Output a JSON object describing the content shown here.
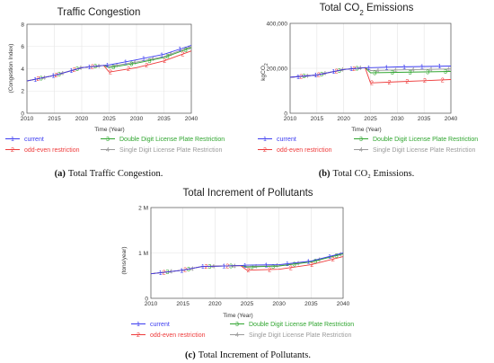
{
  "colors": {
    "current": "#3b3bf0",
    "odd_even": "#ee3b3b",
    "double": "#2fa52f",
    "single": "#9a9a9a"
  },
  "legend": [
    {
      "name": "current",
      "marker": "1",
      "color": "#3b3bf0"
    },
    {
      "name": "odd-even restriction",
      "marker": "2",
      "color": "#ee3b3b"
    },
    {
      "name": "Double Digit License Plate Restriction",
      "marker": "3",
      "color": "#2fa52f"
    },
    {
      "name": "Single Digit License Plate Restriction",
      "marker": "4",
      "color": "#9a9a9a"
    }
  ],
  "chart_data": [
    {
      "type": "line",
      "title": "Traffic Congestion",
      "xlabel": "Time (Year)",
      "ylabel": "(Congestion Index)",
      "xlim": [
        2010,
        2040
      ],
      "ylim": [
        0,
        8
      ],
      "xticks": [
        "2010",
        "2015",
        "2020",
        "2025",
        "2030",
        "2035",
        "2040"
      ],
      "yticks": [
        "0",
        "2",
        "4",
        "6",
        "8"
      ],
      "x": [
        2010,
        2015,
        2020,
        2024,
        2025,
        2030,
        2035,
        2040
      ],
      "series": [
        {
          "name": "current",
          "values": [
            2.9,
            3.4,
            4.1,
            4.3,
            4.35,
            4.8,
            5.3,
            6.1
          ]
        },
        {
          "name": "odd-even restriction",
          "values": [
            2.9,
            3.4,
            4.1,
            4.3,
            3.7,
            4.1,
            4.7,
            5.6
          ]
        },
        {
          "name": "Double Digit License Plate Restriction",
          "values": [
            2.9,
            3.4,
            4.1,
            4.3,
            4.1,
            4.5,
            5.0,
            5.9
          ]
        },
        {
          "name": "Single Digit License Plate Restriction",
          "values": [
            2.9,
            3.4,
            4.1,
            4.3,
            4.2,
            4.6,
            5.1,
            6.0
          ]
        }
      ],
      "caption_label": "(a)",
      "caption_text": "Total Traffic Congestion."
    },
    {
      "type": "line",
      "title_main": "Total CO",
      "title_sub": "2",
      "title_tail": " Emissions",
      "xlabel": "Time (Year)",
      "ylabel_main": "kgCO",
      "ylabel_sub": "2",
      "xlim": [
        2010,
        2040
      ],
      "ylim": [
        0,
        400000
      ],
      "xticks": [
        "2010",
        "2015",
        "2020",
        "2025",
        "2030",
        "2035",
        "2040"
      ],
      "yticks": [
        "0",
        "200,000",
        "400,000"
      ],
      "x": [
        2010,
        2015,
        2020,
        2024,
        2025,
        2030,
        2035,
        2040
      ],
      "series": [
        {
          "name": "current",
          "values": [
            160000,
            170000,
            195000,
            203000,
            203000,
            206000,
            208000,
            210000
          ]
        },
        {
          "name": "odd-even restriction",
          "values": [
            160000,
            170000,
            195000,
            203000,
            135000,
            140000,
            145000,
            150000
          ]
        },
        {
          "name": "Double Digit License Plate Restriction",
          "values": [
            160000,
            170000,
            195000,
            203000,
            180000,
            182000,
            184000,
            186000
          ]
        },
        {
          "name": "Single Digit License Plate Restriction",
          "values": [
            160000,
            170000,
            195000,
            203000,
            190000,
            193000,
            195000,
            197000
          ]
        }
      ],
      "caption_label": "(b)",
      "caption_text": "Total CO₂ Emissions."
    },
    {
      "type": "line",
      "title": "Total Increment of Pollutants",
      "xlabel": "Time (Year)",
      "ylabel": "(tons/year)",
      "xlim": [
        2010,
        2040
      ],
      "ylim": [
        0,
        2000000
      ],
      "xticks": [
        "2010",
        "2015",
        "2020",
        "2025",
        "2030",
        "2035",
        "2040"
      ],
      "yticks": [
        "0",
        "1 M",
        "2 M"
      ],
      "x": [
        2010,
        2015,
        2018,
        2024,
        2025,
        2030,
        2035,
        2040
      ],
      "series": [
        {
          "name": "current",
          "values": [
            540000,
            620000,
            700000,
            720000,
            730000,
            740000,
            820000,
            1000000
          ]
        },
        {
          "name": "odd-even restriction",
          "values": [
            540000,
            620000,
            700000,
            720000,
            620000,
            640000,
            740000,
            920000
          ]
        },
        {
          "name": "Double Digit License Plate Restriction",
          "values": [
            540000,
            620000,
            700000,
            720000,
            690000,
            710000,
            800000,
            980000
          ]
        },
        {
          "name": "Single Digit License Plate Restriction",
          "values": [
            540000,
            620000,
            700000,
            720000,
            700000,
            720000,
            810000,
            990000
          ]
        }
      ],
      "caption_label": "(c)",
      "caption_text": "Total Increment of Pollutants."
    }
  ]
}
